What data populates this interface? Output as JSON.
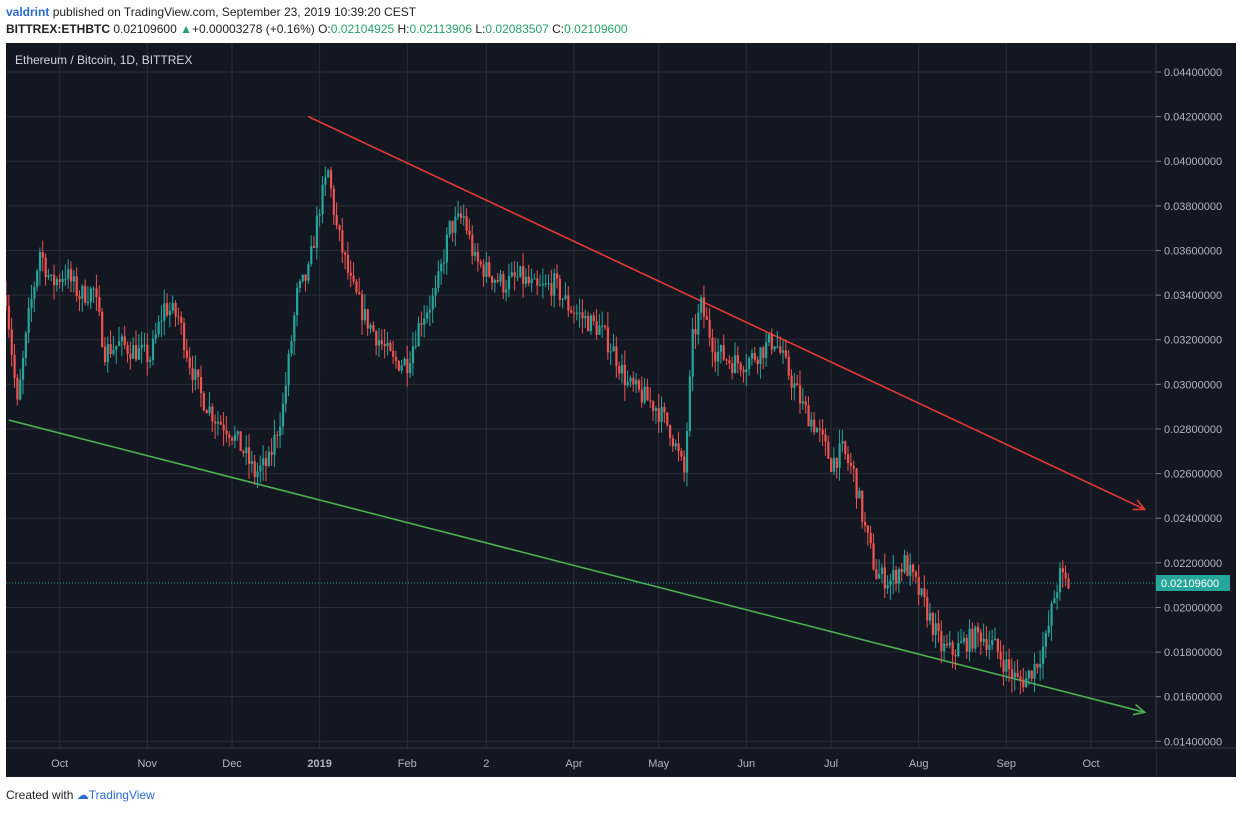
{
  "header": {
    "author": "valdrint",
    "published": "published on TradingView.com, September 23, 2019 10:39:20 CEST",
    "symbol": "BITTREX:ETHBTC",
    "last": "0.02109600",
    "change": "+0.00003278 (+0.16%)",
    "o_label": "O:",
    "o_value": "0.02104925",
    "h_label": "H:",
    "h_value": "0.02113906",
    "l_label": "L:",
    "l_value": "0.02083507",
    "c_label": "C:",
    "c_value": "0.02109600"
  },
  "footer": {
    "created_with": "Created with",
    "brand": "TradingView"
  },
  "colors": {
    "background": "#131722",
    "grid": "#2a2e39",
    "up": "#26a69a",
    "down": "#ef5350",
    "resistance": "#e53935",
    "support": "#4caf50",
    "price_line": "#26a69a"
  },
  "chart_data": {
    "type": "candlestick",
    "title": "Ethereum / Bitcoin, 1D, BITTREX",
    "ylim": [
      0.0137,
      0.0453
    ],
    "yticks": [
      "0.04400000",
      "0.04200000",
      "0.04000000",
      "0.03800000",
      "0.03600000",
      "0.03400000",
      "0.03200000",
      "0.03000000",
      "0.02800000",
      "0.02600000",
      "0.02400000",
      "0.02200000",
      "0.02000000",
      "0.01800000",
      "0.01600000",
      "0.01400000"
    ],
    "xlim": [
      "2018-09-12",
      "2019-10-24"
    ],
    "xticks": [
      {
        "date": "2018-10-01",
        "label": "Oct",
        "bold": false
      },
      {
        "date": "2018-11-01",
        "label": "Nov",
        "bold": false
      },
      {
        "date": "2018-12-01",
        "label": "Dec",
        "bold": false
      },
      {
        "date": "2019-01-01",
        "label": "2019",
        "bold": true
      },
      {
        "date": "2019-02-01",
        "label": "Feb",
        "bold": false
      },
      {
        "date": "2019-03-01",
        "label": "2",
        "bold": false
      },
      {
        "date": "2019-04-01",
        "label": "Apr",
        "bold": false
      },
      {
        "date": "2019-05-01",
        "label": "May",
        "bold": false
      },
      {
        "date": "2019-06-01",
        "label": "Jun",
        "bold": false
      },
      {
        "date": "2019-07-01",
        "label": "Jul",
        "bold": false
      },
      {
        "date": "2019-08-01",
        "label": "Aug",
        "bold": false
      },
      {
        "date": "2019-09-01",
        "label": "Sep",
        "bold": false
      },
      {
        "date": "2019-10-01",
        "label": "Oct",
        "bold": false
      }
    ],
    "close_series_approx": [
      [
        "2018-09-12",
        0.034
      ],
      [
        "2018-09-16",
        0.029
      ],
      [
        "2018-09-20",
        0.033
      ],
      [
        "2018-09-24",
        0.036
      ],
      [
        "2018-09-28",
        0.0345
      ],
      [
        "2018-10-03",
        0.035
      ],
      [
        "2018-10-08",
        0.034
      ],
      [
        "2018-10-13",
        0.0342
      ],
      [
        "2018-10-17",
        0.0315
      ],
      [
        "2018-10-22",
        0.0318
      ],
      [
        "2018-10-28",
        0.0315
      ],
      [
        "2018-11-02",
        0.0312
      ],
      [
        "2018-11-07",
        0.0335
      ],
      [
        "2018-11-12",
        0.033
      ],
      [
        "2018-11-16",
        0.031
      ],
      [
        "2018-11-20",
        0.0295
      ],
      [
        "2018-11-25",
        0.0285
      ],
      [
        "2018-11-30",
        0.028
      ],
      [
        "2018-12-05",
        0.027
      ],
      [
        "2018-12-09",
        0.026
      ],
      [
        "2018-12-14",
        0.0265
      ],
      [
        "2018-12-19",
        0.029
      ],
      [
        "2018-12-24",
        0.034
      ],
      [
        "2018-12-28",
        0.035
      ],
      [
        "2019-01-01",
        0.038
      ],
      [
        "2019-01-04",
        0.0395
      ],
      [
        "2019-01-07",
        0.037
      ],
      [
        "2019-01-12",
        0.0345
      ],
      [
        "2019-01-17",
        0.033
      ],
      [
        "2019-01-22",
        0.032
      ],
      [
        "2019-01-27",
        0.031
      ],
      [
        "2019-02-01",
        0.031
      ],
      [
        "2019-02-06",
        0.033
      ],
      [
        "2019-02-11",
        0.034
      ],
      [
        "2019-02-16",
        0.037
      ],
      [
        "2019-02-21",
        0.0375
      ],
      [
        "2019-02-25",
        0.0355
      ],
      [
        "2019-03-02",
        0.035
      ],
      [
        "2019-03-07",
        0.0345
      ],
      [
        "2019-03-13",
        0.0348
      ],
      [
        "2019-03-19",
        0.0342
      ],
      [
        "2019-03-25",
        0.0345
      ],
      [
        "2019-03-30",
        0.0335
      ],
      [
        "2019-04-04",
        0.033
      ],
      [
        "2019-04-10",
        0.0325
      ],
      [
        "2019-04-15",
        0.0315
      ],
      [
        "2019-04-20",
        0.03
      ],
      [
        "2019-04-25",
        0.0295
      ],
      [
        "2019-04-30",
        0.029
      ],
      [
        "2019-05-05",
        0.028
      ],
      [
        "2019-05-10",
        0.026
      ],
      [
        "2019-05-13",
        0.032
      ],
      [
        "2019-05-16",
        0.0335
      ],
      [
        "2019-05-21",
        0.0315
      ],
      [
        "2019-05-27",
        0.031
      ],
      [
        "2019-06-01",
        0.031
      ],
      [
        "2019-06-06",
        0.0315
      ],
      [
        "2019-06-11",
        0.032
      ],
      [
        "2019-06-16",
        0.0305
      ],
      [
        "2019-06-21",
        0.029
      ],
      [
        "2019-06-26",
        0.028
      ],
      [
        "2019-07-01",
        0.0265
      ],
      [
        "2019-07-05",
        0.027
      ],
      [
        "2019-07-09",
        0.026
      ],
      [
        "2019-07-13",
        0.0235
      ],
      [
        "2019-07-17",
        0.0215
      ],
      [
        "2019-07-22",
        0.0212
      ],
      [
        "2019-07-27",
        0.022
      ],
      [
        "2019-07-31",
        0.021
      ],
      [
        "2019-08-05",
        0.0195
      ],
      [
        "2019-08-09",
        0.0182
      ],
      [
        "2019-08-13",
        0.018
      ],
      [
        "2019-08-18",
        0.0185
      ],
      [
        "2019-08-23",
        0.0188
      ],
      [
        "2019-08-28",
        0.0182
      ],
      [
        "2019-09-02",
        0.0172
      ],
      [
        "2019-09-05",
        0.0167
      ],
      [
        "2019-09-08",
        0.0168
      ],
      [
        "2019-09-12",
        0.0176
      ],
      [
        "2019-09-15",
        0.0185
      ],
      [
        "2019-09-18",
        0.0205
      ],
      [
        "2019-09-20",
        0.0214
      ],
      [
        "2019-09-23",
        0.021
      ]
    ],
    "lines": [
      {
        "name": "resistance",
        "color": "#e53935",
        "x1": "2018-12-28",
        "y1": 0.042,
        "x2": "2019-10-20",
        "y2": 0.0244,
        "arrow": true
      },
      {
        "name": "support",
        "color": "#4caf50",
        "x1": "2018-09-13",
        "y1": 0.0284,
        "x2": "2019-10-20",
        "y2": 0.0153,
        "arrow": true
      }
    ],
    "last_price": 0.021096,
    "last_price_label": "0.02109600"
  }
}
